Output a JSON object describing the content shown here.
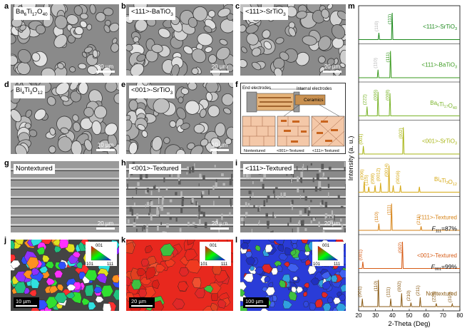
{
  "letters": [
    "a",
    "b",
    "c",
    "d",
    "e",
    "f",
    "g",
    "h",
    "i",
    "j",
    "k",
    "l",
    "m"
  ],
  "panels": {
    "a": {
      "label_main": "Ba",
      "label_sub1": "6",
      "label_mid": "Ti",
      "label_sub2": "17",
      "label_end": "O",
      "label_sub3": "40",
      "scale": "20 µm"
    },
    "b": {
      "label": "<111>-BaTiO",
      "label_sub": "3",
      "scale": "20 µm"
    },
    "c": {
      "label": "<111>-SrTiO",
      "label_sub": "3",
      "scale": "20 µm"
    },
    "d": {
      "label": "Bi",
      "label_sub1": "4",
      "label_mid": "Ti",
      "label_sub2": "3",
      "label_end": "O",
      "label_sub3": "12",
      "scale": "10 µm"
    },
    "e": {
      "label": "<001>-SrTiO",
      "label_sub": "3",
      "scale": "10 µm"
    },
    "f": {
      "end_electrodes": "End electrodes",
      "internal_electrodes": "Internal electrodes",
      "ceramics": "Ceramics",
      "sub_labels": [
        "Nontextured",
        "<001>-Textured",
        "<111>-Textured"
      ]
    },
    "g": {
      "label": "Nontextured",
      "scale": "20 µm"
    },
    "h": {
      "label": "<001>-Textured",
      "scale": "20 µm"
    },
    "i": {
      "label": "<111>-Textured",
      "scale": "20 µm"
    },
    "j": {
      "scale": "10 µm"
    },
    "k": {
      "scale": "20 µm"
    },
    "l": {
      "scale": "100 µm"
    }
  },
  "ipf": {
    "top": "001",
    "left": "101",
    "right": "111"
  },
  "colors": {
    "sem_gray": "#8a8a8a",
    "ebsd_red": "#e8281e",
    "ebsd_blue": "#2a3cd8",
    "electrode_orange": "#c8641e",
    "ceramic_pink": "#f4c8a8"
  },
  "chart_data": {
    "type": "line",
    "xlabel": "2-Theta (Deg)",
    "ylabel": "Intensity (a. u.)",
    "xlim": [
      20,
      80
    ],
    "xticks": [
      "20",
      "30",
      "40",
      "50",
      "60",
      "70",
      "80"
    ],
    "series": [
      {
        "name": "<111>-SrTiO3",
        "name_main": "<111>-SrTiO",
        "name_sub": "3",
        "color": "#1e8a1e",
        "peaks": [
          {
            "x": 32.0,
            "h": 0.25,
            "label": "(110)",
            "faint": true
          },
          {
            "x": 39.9,
            "h": 1.0,
            "label": "(111)"
          }
        ]
      },
      {
        "name": "<111>-BaTiO3",
        "name_main": "<111>-BaTiO",
        "name_sub": "3",
        "color": "#3a9a1e",
        "peaks": [
          {
            "x": 31.5,
            "h": 0.3,
            "label": "(110)",
            "faint": true
          },
          {
            "x": 38.9,
            "h": 1.0,
            "label": "(111)"
          }
        ]
      },
      {
        "name": "Ba6Ti17O40",
        "name_main": "Ba",
        "color": "#7ab42a",
        "peaks": [
          {
            "x": 25.0,
            "h": 0.35,
            "label": "(222)"
          },
          {
            "x": 31.5,
            "h": 0.9,
            "label": "(006)"
          },
          {
            "x": 38.6,
            "h": 0.85,
            "label": "(008)"
          }
        ]
      },
      {
        "name": "<001>-SrTiO3",
        "name_main": "<001>-SrTiO",
        "name_sub": "3",
        "color": "#a8b414",
        "peaks": [
          {
            "x": 22.8,
            "h": 0.3,
            "label": "(001)"
          },
          {
            "x": 46.5,
            "h": 1.0,
            "label": "(002)"
          }
        ]
      },
      {
        "name": "Bi4Ti3O12",
        "name_main": "Bi",
        "color": "#d6a814",
        "peaks": [
          {
            "x": 23.3,
            "h": 0.4,
            "label": "(006)"
          },
          {
            "x": 26.0,
            "h": 0.2,
            "label": "(115)"
          },
          {
            "x": 29.7,
            "h": 0.25,
            "label": "(008)"
          },
          {
            "x": 33.0,
            "h": 0.35,
            "label": "(0012)"
          },
          {
            "x": 38.0,
            "h": 1.0,
            "label": "(0014)"
          },
          {
            "x": 40.5,
            "h": 0.25,
            "label": ""
          },
          {
            "x": 44.8,
            "h": 0.25,
            "label": "(0016)"
          },
          {
            "x": 56.0,
            "h": 0.2,
            "label": ""
          }
        ]
      },
      {
        "name": "<111>-Textured",
        "name_main": "<111>-Textured",
        "color": "#d68214",
        "f_label": "F",
        "f_sub": "111",
        "f_value": "=87%",
        "peaks": [
          {
            "x": 32.0,
            "h": 0.25,
            "label": "(110)"
          },
          {
            "x": 39.5,
            "h": 1.0,
            "label": "(111)"
          },
          {
            "x": 57.0,
            "h": 0.15,
            "label": "(211)"
          }
        ]
      },
      {
        "name": "<001>-Textured",
        "name_main": "<001>-Textured",
        "color": "#d65a14",
        "f_label": "F",
        "f_sub": "001",
        "f_value": "=99%",
        "peaks": [
          {
            "x": 22.5,
            "h": 0.25,
            "label": "(001)"
          },
          {
            "x": 46.0,
            "h": 1.0,
            "label": "(002)"
          }
        ]
      },
      {
        "name": "Nontextured",
        "name_main": "Nontextured",
        "color": "#8a5a14",
        "peaks": [
          {
            "x": 22.2,
            "h": 0.3,
            "label": "(001)"
          },
          {
            "x": 31.7,
            "h": 1.0,
            "label": "(110)"
          },
          {
            "x": 39.0,
            "h": 0.3,
            "label": "(111)"
          },
          {
            "x": 45.5,
            "h": 0.5,
            "label": "(002)"
          },
          {
            "x": 51.0,
            "h": 0.15,
            "label": "(210)"
          },
          {
            "x": 56.5,
            "h": 0.35,
            "label": "(211)"
          },
          {
            "x": 66.0,
            "h": 0.12,
            "label": "(220)"
          },
          {
            "x": 75.5,
            "h": 0.1,
            "label": "(310)"
          }
        ]
      }
    ]
  }
}
